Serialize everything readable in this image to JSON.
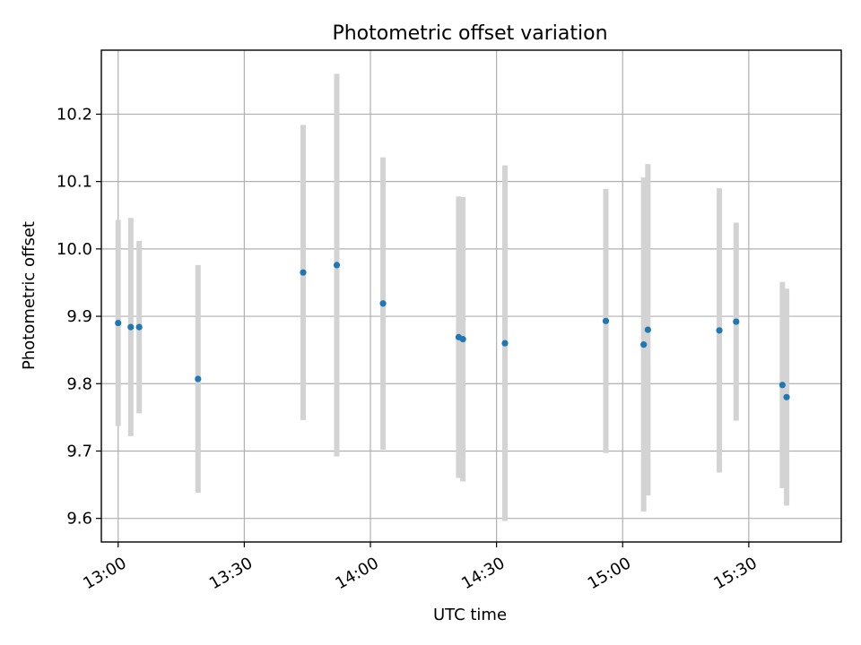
{
  "chart_data": {
    "type": "scatter",
    "title": "Photometric offset variation",
    "xlabel": "UTC time",
    "ylabel": "Photometric offset",
    "x_unit": "minutes",
    "xlim": [
      "12:56",
      "15:52"
    ],
    "ylim": [
      9.565,
      10.295
    ],
    "xticks": [
      "13:00",
      "13:30",
      "14:00",
      "14:30",
      "15:00",
      "15:30"
    ],
    "yticks": [
      9.6,
      9.7,
      9.8,
      9.9,
      10.0,
      10.1,
      10.2
    ],
    "ytick_labels": [
      "9.6",
      "9.7",
      "9.8",
      "9.9",
      "10.0",
      "10.1",
      "10.2"
    ],
    "grid": true,
    "point_color": "#1f77b4",
    "errorbar_color": "#d3d3d3",
    "points": [
      {
        "x": "13:00",
        "y": 9.89,
        "err": 0.153
      },
      {
        "x": "13:03",
        "y": 9.884,
        "err": 0.162
      },
      {
        "x": "13:05",
        "y": 9.884,
        "err": 0.128
      },
      {
        "x": "13:19",
        "y": 9.807,
        "err": 0.169
      },
      {
        "x": "13:44",
        "y": 9.965,
        "err": 0.219
      },
      {
        "x": "13:52",
        "y": 9.976,
        "err": 0.284
      },
      {
        "x": "14:03",
        "y": 9.919,
        "err": 0.217
      },
      {
        "x": "14:21",
        "y": 9.869,
        "err": 0.209
      },
      {
        "x": "14:22",
        "y": 9.866,
        "err": 0.211
      },
      {
        "x": "14:32",
        "y": 9.86,
        "err": 0.264
      },
      {
        "x": "14:56",
        "y": 9.893,
        "err": 0.196
      },
      {
        "x": "15:05",
        "y": 9.858,
        "err": 0.248
      },
      {
        "x": "15:06",
        "y": 9.88,
        "err": 0.246
      },
      {
        "x": "15:23",
        "y": 9.879,
        "err": 0.211
      },
      {
        "x": "15:27",
        "y": 9.892,
        "err": 0.147
      },
      {
        "x": "15:38",
        "y": 9.798,
        "err": 0.153
      },
      {
        "x": "15:39",
        "y": 9.78,
        "err": 0.161
      }
    ]
  }
}
